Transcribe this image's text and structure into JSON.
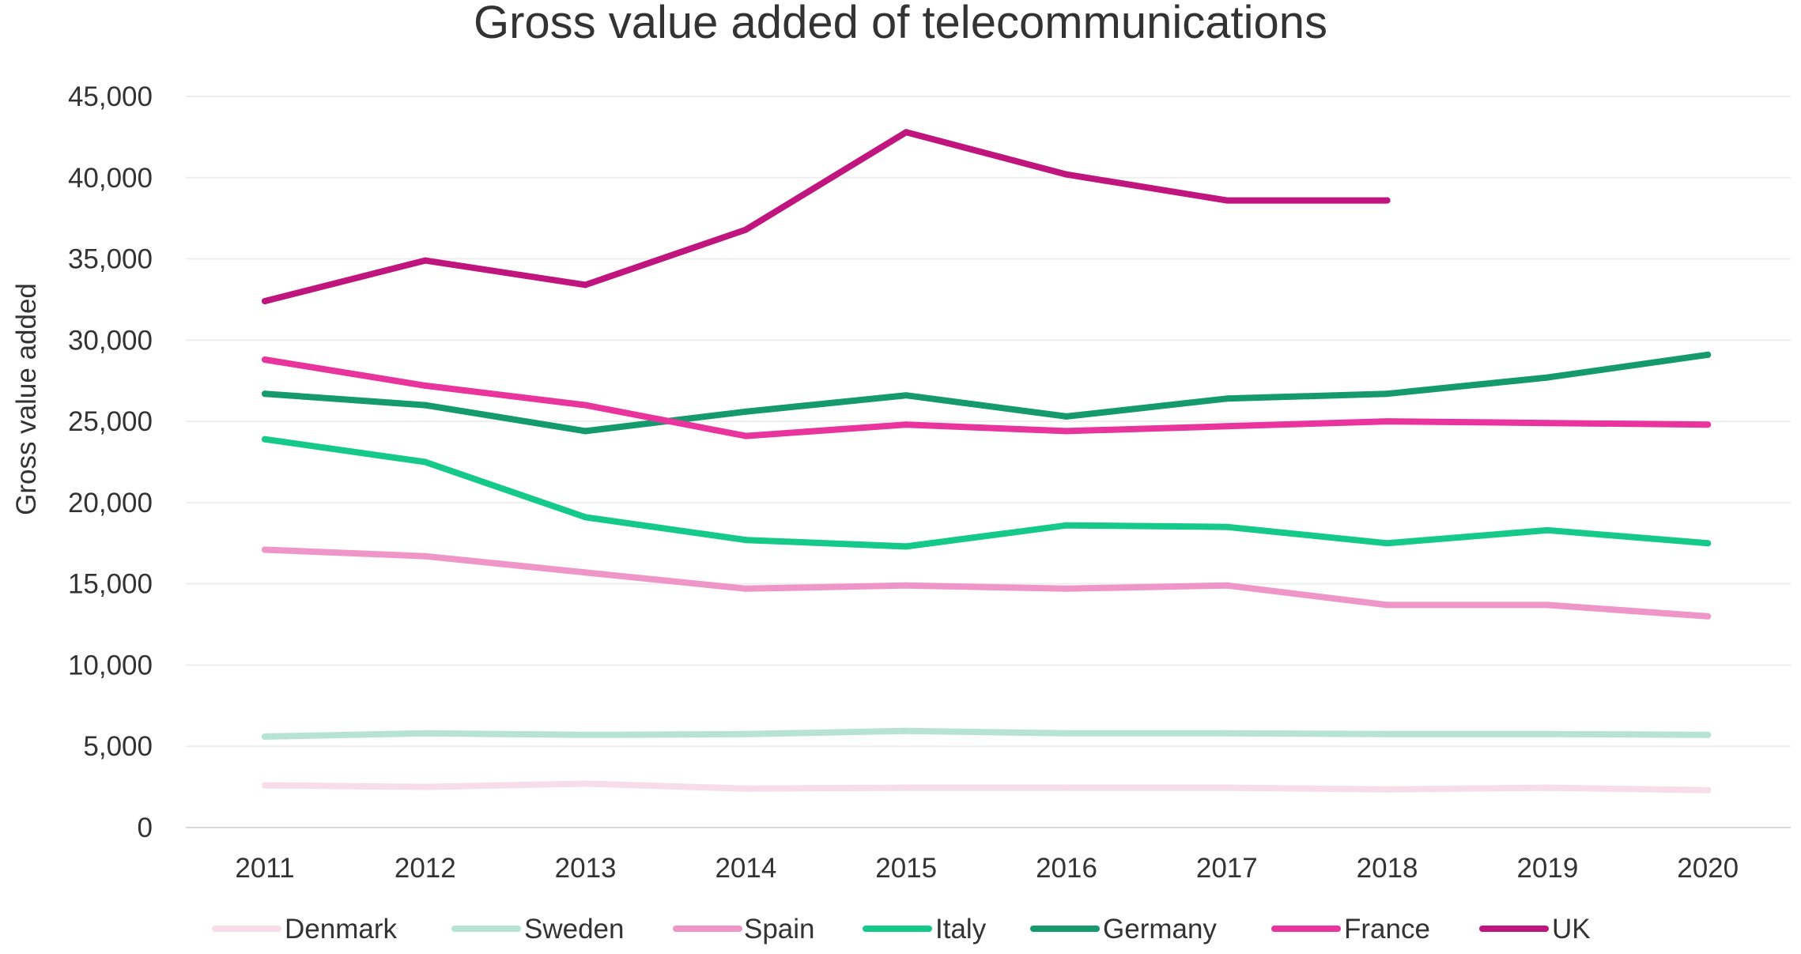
{
  "chart_data": {
    "type": "line",
    "title": "Gross value added of telecommunications",
    "xlabel": "",
    "ylabel": "Gross value added",
    "x": [
      "2011",
      "2012",
      "2013",
      "2014",
      "2015",
      "2016",
      "2017",
      "2018",
      "2019",
      "2020"
    ],
    "ylim": [
      0,
      45000
    ],
    "yticks": [
      0,
      5000,
      10000,
      15000,
      20000,
      25000,
      30000,
      35000,
      40000,
      45000
    ],
    "ytick_labels": [
      "0",
      "5,000",
      "10,000",
      "15,000",
      "20,000",
      "25,000",
      "30,000",
      "35,000",
      "40,000",
      "45,000"
    ],
    "grid": "horizontal",
    "legend_position": "bottom",
    "series": [
      {
        "name": "Denmark",
        "color": "#f7dcea",
        "values": [
          2600,
          2500,
          2700,
          2400,
          2450,
          2450,
          2450,
          2350,
          2450,
          2300
        ]
      },
      {
        "name": "Sweden",
        "color": "#b6e3d3",
        "values": [
          5600,
          5800,
          5700,
          5750,
          5950,
          5800,
          5800,
          5750,
          5750,
          5700
        ]
      },
      {
        "name": "Spain",
        "color": "#ef96c8",
        "values": [
          17100,
          16700,
          15700,
          14700,
          14900,
          14700,
          14900,
          13700,
          13700,
          13000
        ]
      },
      {
        "name": "Italy",
        "color": "#15c98b",
        "values": [
          23900,
          22500,
          19100,
          17700,
          17300,
          18600,
          18500,
          17500,
          18300,
          17500
        ]
      },
      {
        "name": "Germany",
        "color": "#149a6c",
        "values": [
          26700,
          26000,
          24400,
          25600,
          26600,
          25300,
          26400,
          26700,
          27700,
          29100
        ]
      },
      {
        "name": "France",
        "color": "#e8349c",
        "values": [
          28800,
          27200,
          26000,
          24100,
          24800,
          24400,
          24700,
          25000,
          24900,
          24800
        ]
      },
      {
        "name": "UK",
        "color": "#c0157e",
        "values": [
          32400,
          34900,
          33400,
          36800,
          42800,
          40200,
          38600,
          38600,
          null,
          null
        ]
      }
    ]
  }
}
